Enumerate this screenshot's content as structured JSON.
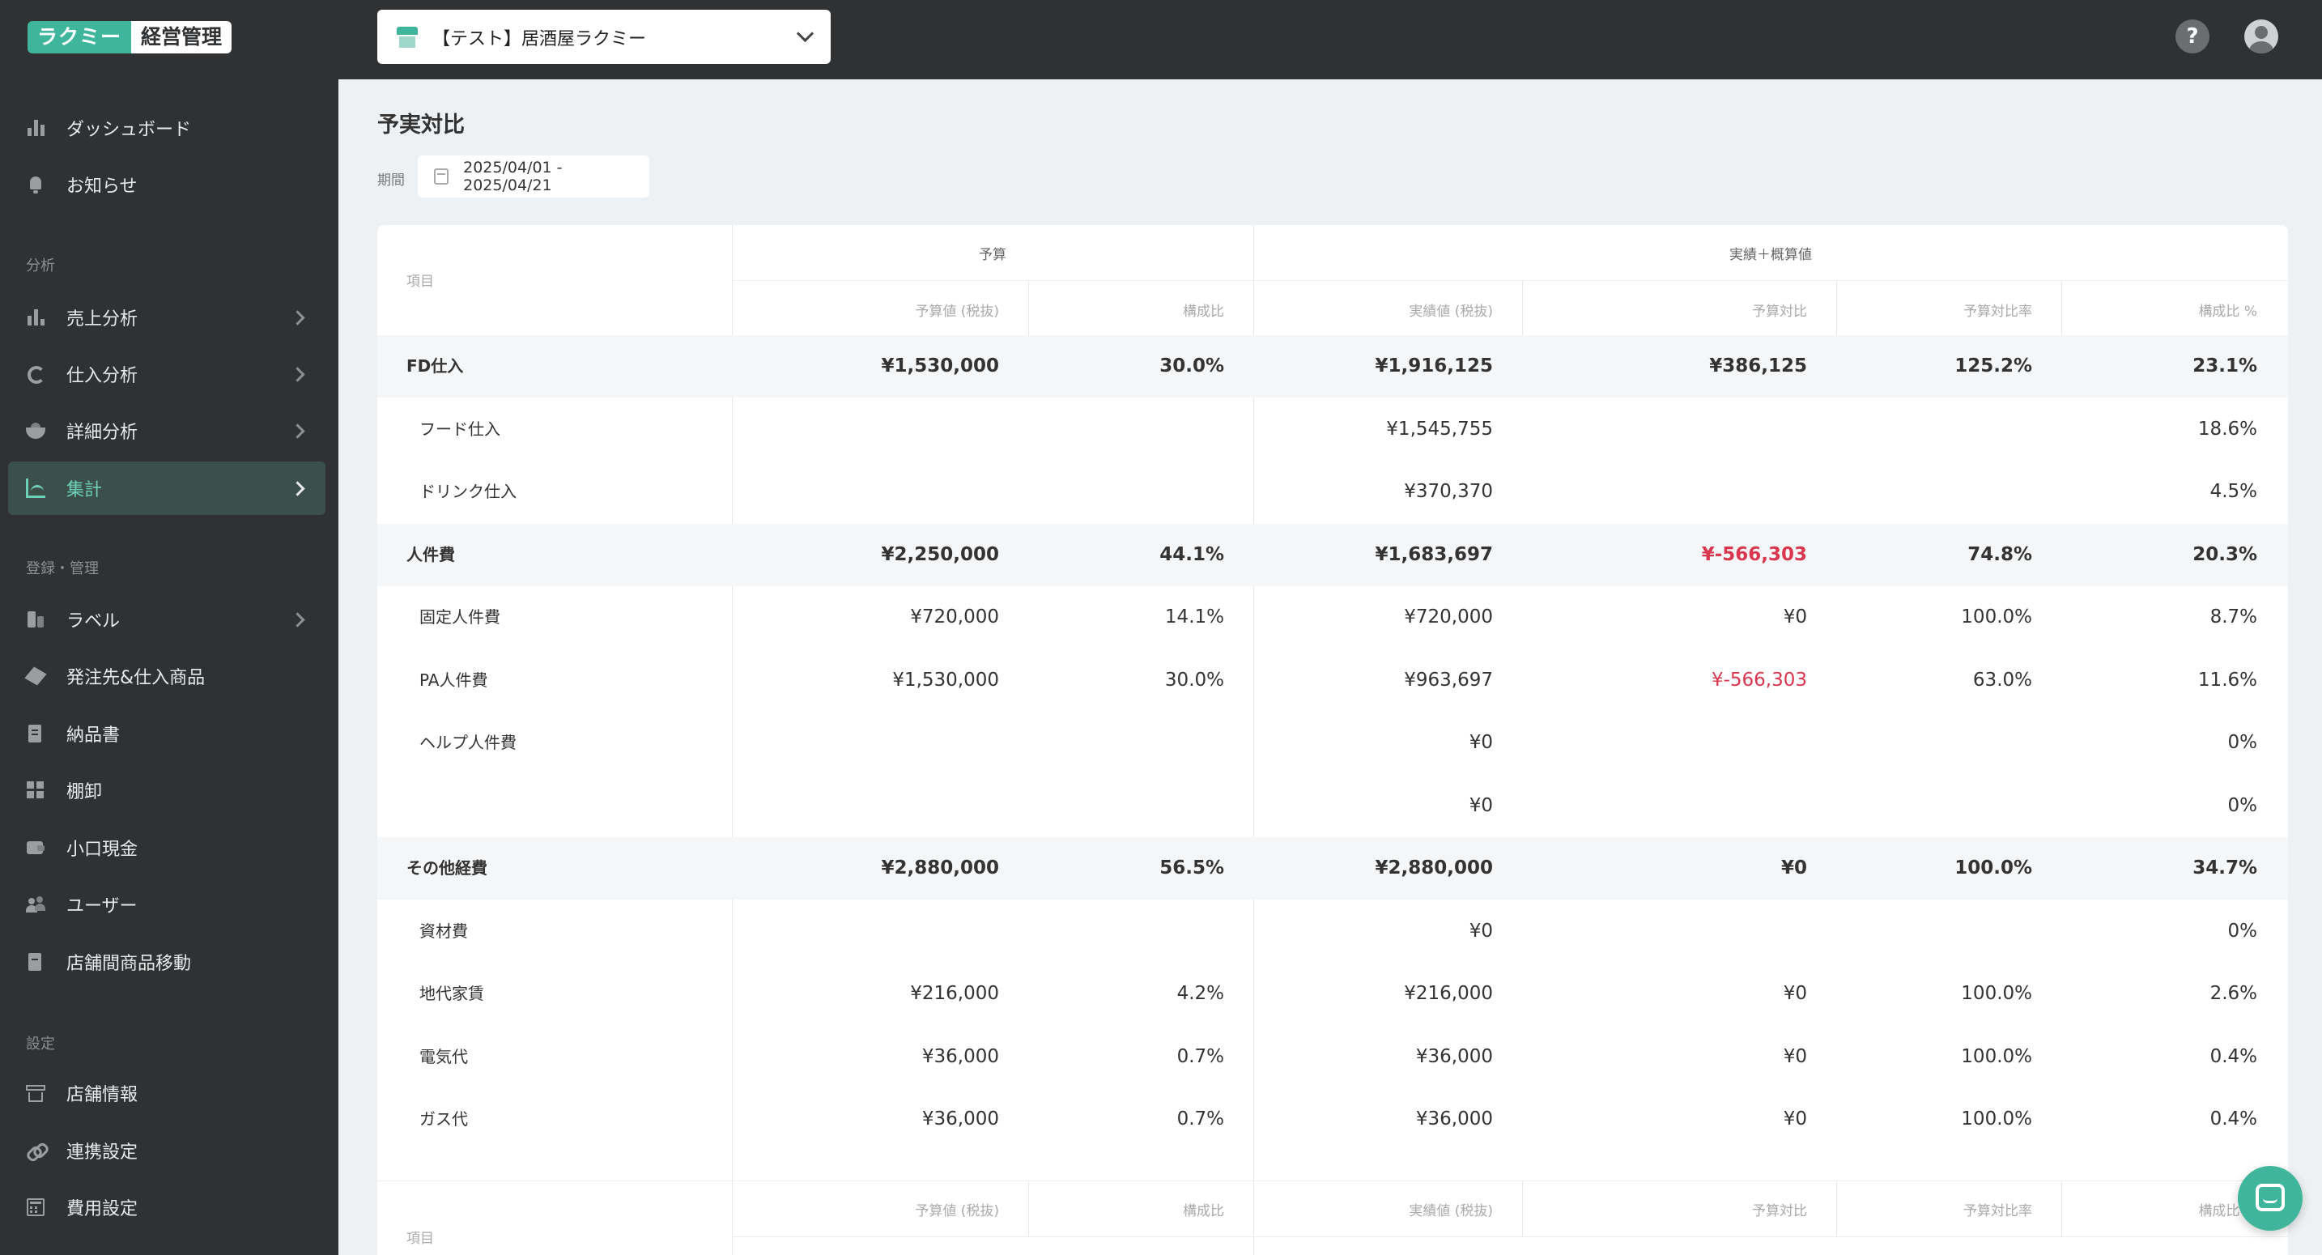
{
  "header": {
    "logo_left": "ラクミー",
    "logo_right": "経営管理",
    "store_name": "【テスト】居酒屋ラクミー",
    "help_label": "?"
  },
  "sidebar": {
    "top_items": [
      {
        "label": "ダッシュボード",
        "icon": "chart-icon"
      },
      {
        "label": "お知らせ",
        "icon": "bell-icon"
      }
    ],
    "section_analysis": "分析",
    "analysis_items": [
      {
        "label": "売上分析",
        "icon": "bar-chart-icon"
      },
      {
        "label": "仕入分析",
        "icon": "pie-chart-icon"
      },
      {
        "label": "詳細分析",
        "icon": "bowl-icon"
      },
      {
        "label": "集計",
        "icon": "aggregate-icon"
      }
    ],
    "section_register": "登録・管理",
    "register_items": [
      {
        "label": "ラベル",
        "icon": "label-icon"
      },
      {
        "label": "発注先&仕入商品",
        "icon": "box-icon"
      },
      {
        "label": "納品書",
        "icon": "receipt-icon"
      },
      {
        "label": "棚卸",
        "icon": "shelf-icon"
      },
      {
        "label": "小口現金",
        "icon": "wallet-icon"
      },
      {
        "label": "ユーザー",
        "icon": "users-icon"
      },
      {
        "label": "店舗間商品移動",
        "icon": "transfer-icon"
      }
    ],
    "section_settings": "設定",
    "settings_items": [
      {
        "label": "店舗情報",
        "icon": "store-icon"
      },
      {
        "label": "連携設定",
        "icon": "link-icon"
      },
      {
        "label": "費用設定",
        "icon": "calculator-icon"
      }
    ]
  },
  "page": {
    "title": "予実対比",
    "period_label": "期間",
    "period_value": "2025/04/01 - 2025/04/21"
  },
  "table": {
    "item_header": "項目",
    "group_budget": "予算",
    "group_actual": "実績＋概算値",
    "columns": [
      "予算値 (税抜)",
      "構成比",
      "実績値 (税抜)",
      "予算対比",
      "予算対比率",
      "構成比 %"
    ],
    "rows": [
      {
        "item": "FD仕入",
        "group": true,
        "budget": "¥1,530,000",
        "ratio": "30.0%",
        "actual": "¥1,916,125",
        "diff": "¥386,125",
        "diff_neg": false,
        "rate": "125.2%",
        "share": "23.1%"
      },
      {
        "item": "フード仕入",
        "group": false,
        "budget": "",
        "ratio": "",
        "actual": "¥1,545,755",
        "diff": "",
        "diff_neg": false,
        "rate": "",
        "share": "18.6%"
      },
      {
        "item": "ドリンク仕入",
        "group": false,
        "budget": "",
        "ratio": "",
        "actual": "¥370,370",
        "diff": "",
        "diff_neg": false,
        "rate": "",
        "share": "4.5%"
      },
      {
        "item": "人件費",
        "group": true,
        "budget": "¥2,250,000",
        "ratio": "44.1%",
        "actual": "¥1,683,697",
        "diff": "¥-566,303",
        "diff_neg": true,
        "rate": "74.8%",
        "share": "20.3%"
      },
      {
        "item": "固定人件費",
        "group": false,
        "budget": "¥720,000",
        "ratio": "14.1%",
        "actual": "¥720,000",
        "diff": "¥0",
        "diff_neg": false,
        "rate": "100.0%",
        "share": "8.7%"
      },
      {
        "item": "PA人件費",
        "group": false,
        "budget": "¥1,530,000",
        "ratio": "30.0%",
        "actual": "¥963,697",
        "diff": "¥-566,303",
        "diff_neg": true,
        "rate": "63.0%",
        "share": "11.6%"
      },
      {
        "item": "ヘルプ人件費",
        "group": false,
        "budget": "",
        "ratio": "",
        "actual": "¥0",
        "diff": "",
        "diff_neg": false,
        "rate": "",
        "share": "0%"
      },
      {
        "item": "",
        "group": false,
        "budget": "",
        "ratio": "",
        "actual": "¥0",
        "diff": "",
        "diff_neg": false,
        "rate": "",
        "share": "0%"
      },
      {
        "item": "その他経費",
        "group": true,
        "budget": "¥2,880,000",
        "ratio": "56.5%",
        "actual": "¥2,880,000",
        "diff": "¥0",
        "diff_neg": false,
        "rate": "100.0%",
        "share": "34.7%"
      },
      {
        "item": "資材費",
        "group": false,
        "budget": "",
        "ratio": "",
        "actual": "¥0",
        "diff": "",
        "diff_neg": false,
        "rate": "",
        "share": "0%"
      },
      {
        "item": "地代家賃",
        "group": false,
        "budget": "¥216,000",
        "ratio": "4.2%",
        "actual": "¥216,000",
        "diff": "¥0",
        "diff_neg": false,
        "rate": "100.0%",
        "share": "2.6%"
      },
      {
        "item": "電気代",
        "group": false,
        "budget": "¥36,000",
        "ratio": "0.7%",
        "actual": "¥36,000",
        "diff": "¥0",
        "diff_neg": false,
        "rate": "100.0%",
        "share": "0.4%"
      },
      {
        "item": "ガス代",
        "group": false,
        "budget": "¥36,000",
        "ratio": "0.7%",
        "actual": "¥36,000",
        "diff": "¥0",
        "diff_neg": false,
        "rate": "100.0%",
        "share": "0.4%"
      }
    ]
  },
  "colors": {
    "accent": "#3fb59b",
    "negative": "#d9364f",
    "sidebar_bg": "#2f3133"
  }
}
